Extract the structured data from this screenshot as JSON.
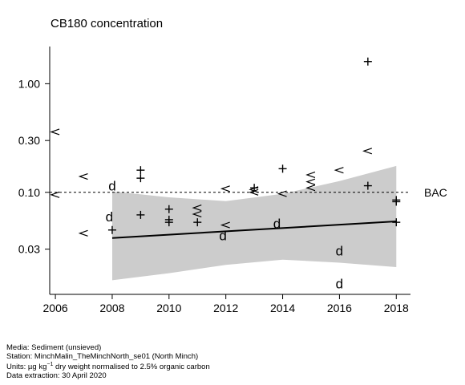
{
  "chart_data": {
    "type": "scatter",
    "title": "CB180 concentration",
    "xlabel": "",
    "ylabel": "",
    "y_scale": "log",
    "xlim": [
      2005.8,
      2018.5
    ],
    "ylim": [
      0.0115,
      2.2
    ],
    "x_ticks": [
      2006,
      2008,
      2010,
      2012,
      2014,
      2016,
      2018
    ],
    "x_tick_labels": [
      "2006",
      "2008",
      "2010",
      "2012",
      "2014",
      "2016",
      "2018"
    ],
    "y_ticks": [
      0.03,
      0.1,
      0.3,
      1.0
    ],
    "y_tick_labels": [
      "0.03",
      "0.10",
      "0.30",
      "1.00"
    ],
    "grid": false,
    "reference_line": {
      "label": "BAC",
      "value": 0.1,
      "style": "dashed"
    },
    "trend": {
      "x": [
        2008,
        2018
      ],
      "y": [
        0.038,
        0.054
      ],
      "band_x": [
        2008,
        2010,
        2012,
        2014,
        2016,
        2018
      ],
      "band_lower": [
        0.0155,
        0.018,
        0.0215,
        0.024,
        0.0225,
        0.0205
      ],
      "band_upper": [
        0.102,
        0.09,
        0.083,
        0.097,
        0.127,
        0.175
      ]
    },
    "point_types": {
      "+": "measured value",
      "<": "less-than value",
      "d": "d"
    },
    "points": [
      {
        "x": 2006.0,
        "y": 0.36,
        "symbol": "<"
      },
      {
        "x": 2006.0,
        "y": 0.095,
        "symbol": "<"
      },
      {
        "x": 2007.0,
        "y": 0.14,
        "symbol": "<"
      },
      {
        "x": 2007.0,
        "y": 0.042,
        "symbol": "<"
      },
      {
        "x": 2008.0,
        "y": 0.115,
        "symbol": "d"
      },
      {
        "x": 2008.0,
        "y": 0.045,
        "symbol": "+"
      },
      {
        "x": 2007.9,
        "y": 0.06,
        "symbol": "d"
      },
      {
        "x": 2009.0,
        "y": 0.16,
        "symbol": "+"
      },
      {
        "x": 2009.0,
        "y": 0.135,
        "symbol": "+"
      },
      {
        "x": 2009.0,
        "y": 0.062,
        "symbol": "+"
      },
      {
        "x": 2010.0,
        "y": 0.07,
        "symbol": "+"
      },
      {
        "x": 2010.0,
        "y": 0.056,
        "symbol": "+"
      },
      {
        "x": 2010.0,
        "y": 0.053,
        "symbol": "+"
      },
      {
        "x": 2011.0,
        "y": 0.072,
        "symbol": "<"
      },
      {
        "x": 2011.0,
        "y": 0.063,
        "symbol": "<"
      },
      {
        "x": 2011.0,
        "y": 0.053,
        "symbol": "+"
      },
      {
        "x": 2012.0,
        "y": 0.108,
        "symbol": "<"
      },
      {
        "x": 2012.0,
        "y": 0.05,
        "symbol": "<"
      },
      {
        "x": 2011.9,
        "y": 0.04,
        "symbol": "d"
      },
      {
        "x": 2013.0,
        "y": 0.11,
        "symbol": "+"
      },
      {
        "x": 2013.0,
        "y": 0.106,
        "symbol": "<"
      },
      {
        "x": 2013.0,
        "y": 0.1,
        "symbol": "<"
      },
      {
        "x": 2014.0,
        "y": 0.165,
        "symbol": "+"
      },
      {
        "x": 2014.0,
        "y": 0.097,
        "symbol": "<"
      },
      {
        "x": 2013.8,
        "y": 0.052,
        "symbol": "d"
      },
      {
        "x": 2015.0,
        "y": 0.145,
        "symbol": "<"
      },
      {
        "x": 2015.0,
        "y": 0.125,
        "symbol": "<"
      },
      {
        "x": 2015.0,
        "y": 0.11,
        "symbol": "<"
      },
      {
        "x": 2016.0,
        "y": 0.16,
        "symbol": "<"
      },
      {
        "x": 2016.0,
        "y": 0.029,
        "symbol": "d"
      },
      {
        "x": 2016.0,
        "y": 0.0145,
        "symbol": "d"
      },
      {
        "x": 2017.0,
        "y": 1.6,
        "symbol": "+"
      },
      {
        "x": 2017.0,
        "y": 0.24,
        "symbol": "<"
      },
      {
        "x": 2017.0,
        "y": 0.115,
        "symbol": "+"
      },
      {
        "x": 2018.0,
        "y": 0.085,
        "symbol": "+"
      },
      {
        "x": 2018.0,
        "y": 0.082,
        "symbol": "+"
      },
      {
        "x": 2018.0,
        "y": 0.053,
        "symbol": "+"
      }
    ]
  },
  "footer": {
    "media": "Media: Sediment (unsieved)",
    "station": "Station: MinchMalin_TheMinchNorth_se01 (North Minch)",
    "units_prefix": "Units: µg kg",
    "units_sup": "−1",
    "units_suffix": " dry weight normalised to 2.5% organic carbon",
    "extraction": "Data extraction: 30 April 2020"
  },
  "colors": {
    "band": "#cccccc",
    "trend": "#000000",
    "axis": "#000000",
    "bac_line": "#000000"
  }
}
